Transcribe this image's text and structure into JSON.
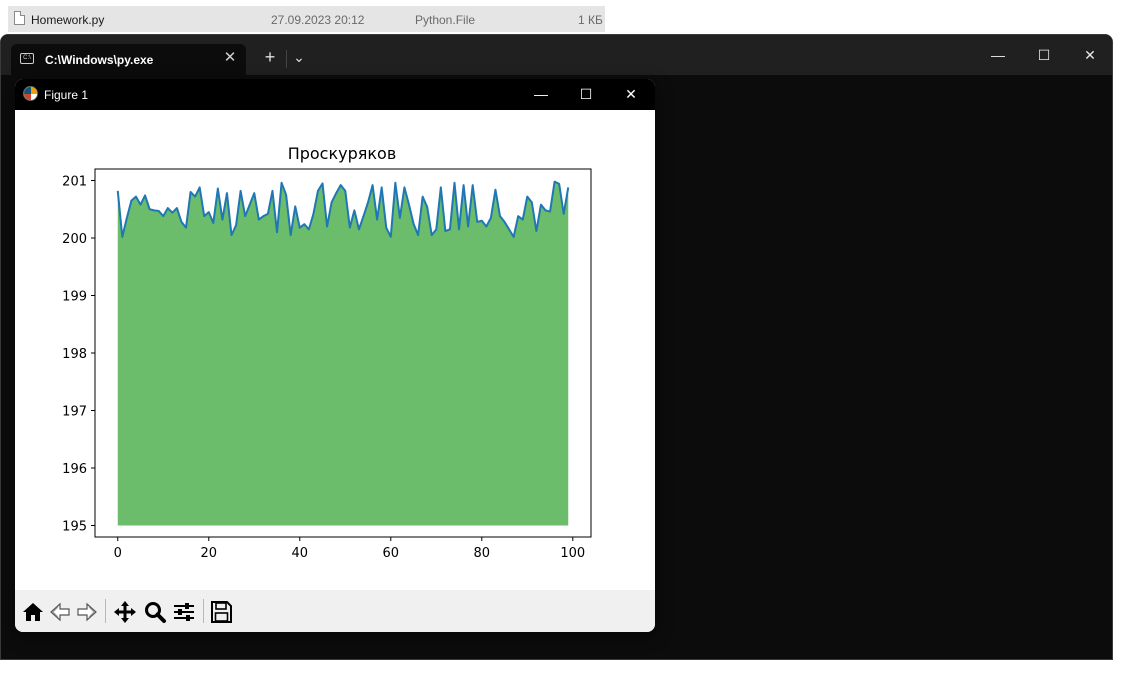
{
  "explorer_row": {
    "name": "Homework.py",
    "modified": "27.09.2023 20:12",
    "type": "Python.File",
    "size": "1 КБ"
  },
  "terminal": {
    "tab_title": "C:\\Windows\\py.exe",
    "tab_icon_text": "C:\\",
    "new_tab_glyph": "+",
    "dropdown_glyph": "⌄",
    "close_tab_glyph": "✕",
    "minimize_glyph": "—",
    "maximize_glyph": "☐",
    "close_glyph": "✕"
  },
  "figure_window": {
    "title": "Figure 1",
    "minimize_glyph": "—",
    "maximize_glyph": "☐",
    "close_glyph": "✕"
  },
  "toolbar": {
    "buttons": [
      "home-icon",
      "back-icon",
      "forward-icon",
      "pan-icon",
      "zoom-icon",
      "configure-subplots-icon",
      "save-icon"
    ]
  },
  "colors": {
    "line": "#1f77b4",
    "fill": "#2ca02c",
    "fill_opacity": 0.7
  },
  "chart_data": {
    "type": "area",
    "title": "Проскуряков",
    "xlabel": "",
    "ylabel": "",
    "xlim": [
      -5,
      104
    ],
    "ylim": [
      194.8,
      201.2
    ],
    "fill_base": 195,
    "x_ticks": [
      0,
      20,
      40,
      60,
      80,
      100
    ],
    "x_tick_labels": [
      "0",
      "20",
      "40",
      "60",
      "80",
      "100"
    ],
    "y_ticks": [
      195,
      196,
      197,
      198,
      199,
      200,
      201
    ],
    "y_tick_labels": [
      "195",
      "196",
      "197",
      "198",
      "199",
      "200",
      "201"
    ],
    "grid": false,
    "legend": false,
    "x": [
      0,
      1,
      2,
      3,
      4,
      5,
      6,
      7,
      8,
      9,
      10,
      11,
      12,
      13,
      14,
      15,
      16,
      17,
      18,
      19,
      20,
      21,
      22,
      23,
      24,
      25,
      26,
      27,
      28,
      29,
      30,
      31,
      32,
      33,
      34,
      35,
      36,
      37,
      38,
      39,
      40,
      41,
      42,
      43,
      44,
      45,
      46,
      47,
      48,
      49,
      50,
      51,
      52,
      53,
      54,
      55,
      56,
      57,
      58,
      59,
      60,
      61,
      62,
      63,
      64,
      65,
      66,
      67,
      68,
      69,
      70,
      71,
      72,
      73,
      74,
      75,
      76,
      77,
      78,
      79,
      80,
      81,
      82,
      83,
      84,
      85,
      86,
      87,
      88,
      89,
      90,
      91,
      92,
      93,
      94,
      95,
      96,
      97,
      98,
      99
    ],
    "y": [
      200.82,
      200.02,
      200.35,
      200.65,
      200.72,
      200.58,
      200.74,
      200.5,
      200.48,
      200.47,
      200.38,
      200.52,
      200.44,
      200.52,
      200.28,
      200.18,
      200.8,
      200.72,
      200.88,
      200.38,
      200.45,
      200.26,
      200.86,
      200.32,
      200.78,
      200.05,
      200.22,
      200.82,
      200.38,
      200.58,
      200.78,
      200.32,
      200.38,
      200.42,
      200.82,
      200.1,
      200.96,
      200.75,
      200.05,
      200.55,
      200.18,
      200.24,
      200.15,
      200.42,
      200.82,
      200.95,
      200.2,
      200.62,
      200.78,
      200.92,
      200.82,
      200.18,
      200.48,
      200.15,
      200.38,
      200.62,
      200.92,
      200.32,
      200.88,
      200.18,
      200.02,
      200.96,
      200.35,
      200.88,
      200.58,
      200.25,
      200.05,
      200.72,
      200.54,
      200.05,
      200.15,
      200.88,
      200.12,
      200.15,
      200.96,
      200.15,
      200.92,
      200.2,
      200.92,
      200.28,
      200.3,
      200.2,
      200.35,
      200.84,
      200.38,
      200.28,
      200.15,
      200.02,
      200.38,
      200.32,
      200.72,
      200.62,
      200.12,
      200.58,
      200.48,
      200.46,
      200.98,
      200.94,
      200.42,
      200.88
    ]
  }
}
